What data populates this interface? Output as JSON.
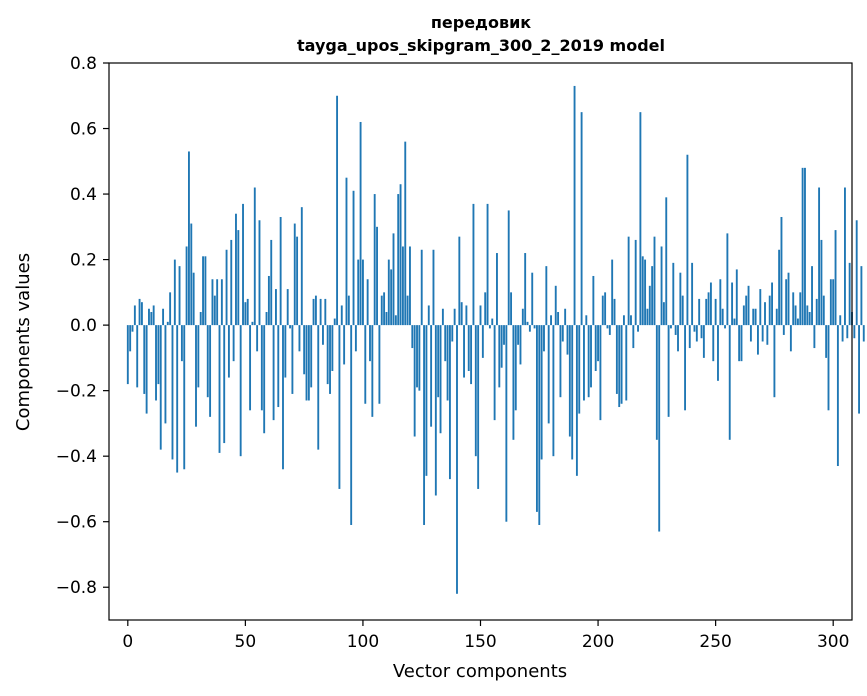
{
  "chart_data": {
    "type": "bar",
    "title": "передовик",
    "subtitle": "tayga_upos_skipgram_300_2_2019 model",
    "xlabel": "Vector components",
    "ylabel": "Components values",
    "xlim": [
      -8,
      308
    ],
    "ylim": [
      -0.9,
      0.8
    ],
    "xticks": [
      0,
      50,
      100,
      150,
      200,
      250,
      300
    ],
    "xtick_labels": [
      "0",
      "50",
      "100",
      "150",
      "200",
      "250",
      "300"
    ],
    "yticks": [
      -0.8,
      -0.6,
      -0.4,
      -0.2,
      0.0,
      0.2,
      0.4,
      0.6,
      0.8
    ],
    "ytick_labels": [
      "−0.8",
      "−0.6",
      "−0.4",
      "−0.2",
      "0.0",
      "0.2",
      "0.4",
      "0.6",
      "0.8"
    ],
    "bar_color": "#1f77b4",
    "grid": false,
    "series": [
      {
        "name": "передовик",
        "values": [
          -0.18,
          -0.08,
          -0.02,
          0.06,
          -0.19,
          0.08,
          0.07,
          -0.21,
          -0.27,
          0.05,
          0.04,
          0.06,
          -0.23,
          -0.18,
          -0.38,
          0.05,
          -0.3,
          0.01,
          0.1,
          -0.41,
          0.2,
          -0.45,
          0.18,
          -0.11,
          -0.44,
          0.24,
          0.53,
          0.31,
          0.16,
          -0.31,
          -0.19,
          0.04,
          0.21,
          0.21,
          -0.22,
          -0.28,
          0.14,
          0.09,
          0.14,
          -0.39,
          0.14,
          -0.36,
          0.23,
          -0.16,
          0.26,
          -0.11,
          0.34,
          0.29,
          -0.4,
          0.37,
          0.07,
          0.08,
          -0.26,
          0.01,
          0.42,
          -0.08,
          0.32,
          -0.26,
          -0.33,
          0.04,
          0.15,
          0.26,
          -0.29,
          0.11,
          -0.25,
          0.33,
          -0.44,
          -0.16,
          0.11,
          -0.01,
          -0.21,
          0.31,
          0.27,
          -0.08,
          0.36,
          -0.15,
          -0.23,
          -0.23,
          -0.19,
          0.08,
          0.09,
          -0.38,
          0.08,
          -0.06,
          0.08,
          -0.18,
          -0.21,
          -0.14,
          0.02,
          0.7,
          -0.5,
          0.06,
          -0.12,
          0.45,
          0.09,
          -0.61,
          0.41,
          -0.08,
          0.2,
          0.62,
          0.2,
          -0.24,
          0.14,
          -0.11,
          -0.28,
          0.4,
          0.3,
          -0.24,
          0.09,
          0.1,
          0.04,
          0.2,
          0.17,
          0.28,
          0.03,
          0.4,
          0.43,
          0.24,
          0.56,
          0.09,
          0.24,
          -0.07,
          -0.34,
          -0.19,
          -0.2,
          0.23,
          -0.61,
          -0.46,
          0.06,
          -0.31,
          0.23,
          -0.52,
          -0.22,
          -0.33,
          0.05,
          -0.11,
          -0.23,
          -0.47,
          -0.05,
          0.05,
          -0.82,
          0.27,
          0.07,
          -0.16,
          0.06,
          -0.14,
          -0.18,
          0.37,
          -0.4,
          -0.5,
          0.06,
          -0.1,
          0.1,
          0.37,
          -0.01,
          0.02,
          -0.29,
          0.22,
          -0.19,
          -0.13,
          -0.06,
          -0.6,
          0.35,
          0.1,
          -0.35,
          -0.26,
          -0.06,
          -0.12,
          0.05,
          0.22,
          0.01,
          -0.02,
          0.16,
          -0.01,
          -0.57,
          -0.61,
          -0.41,
          -0.08,
          0.18,
          -0.3,
          0.03,
          -0.4,
          0.12,
          0.04,
          -0.22,
          -0.05,
          0.05,
          -0.09,
          -0.34,
          -0.41,
          0.73,
          -0.46,
          -0.27,
          0.65,
          -0.23,
          0.03,
          -0.22,
          -0.19,
          0.15,
          -0.14,
          -0.11,
          -0.29,
          0.09,
          0.1,
          -0.01,
          -0.03,
          0.2,
          0.08,
          -0.21,
          -0.25,
          -0.24,
          0.03,
          -0.23,
          0.27,
          0.03,
          -0.07,
          0.26,
          -0.02,
          0.65,
          0.21,
          0.2,
          0.05,
          0.12,
          0.18,
          0.27,
          -0.35,
          -0.63,
          0.24,
          0.07,
          0.39,
          -0.28,
          -0.01,
          0.19,
          -0.03,
          -0.08,
          0.16,
          0.09,
          -0.26,
          0.52,
          -0.07,
          0.19,
          -0.02,
          -0.05,
          0.08,
          -0.04,
          -0.1,
          0.08,
          0.1,
          0.13,
          -0.11,
          0.08,
          -0.17,
          0.14,
          0.05,
          -0.01,
          0.28,
          -0.35,
          0.13,
          0.02,
          0.17,
          -0.11,
          -0.11,
          0.06,
          0.09,
          0.12,
          -0.05,
          0.05,
          0.05,
          -0.09,
          0.11,
          -0.05,
          0.07,
          -0.06,
          0.09,
          0.13,
          -0.22,
          0.05,
          0.23,
          0.33,
          -0.03,
          0.14,
          0.16,
          -0.08,
          0.1,
          0.06,
          0.02,
          0.1,
          0.48,
          0.48,
          0.06,
          0.04,
          0.18,
          -0.07,
          0.08,
          0.42,
          0.26,
          0.09,
          -0.1,
          -0.26,
          0.14,
          0.14,
          0.29,
          -0.43,
          0.03,
          -0.05,
          0.42,
          -0.04,
          0.19,
          0.04,
          -0.04,
          0.32,
          -0.27,
          0.18,
          -0.05
        ]
      }
    ]
  }
}
